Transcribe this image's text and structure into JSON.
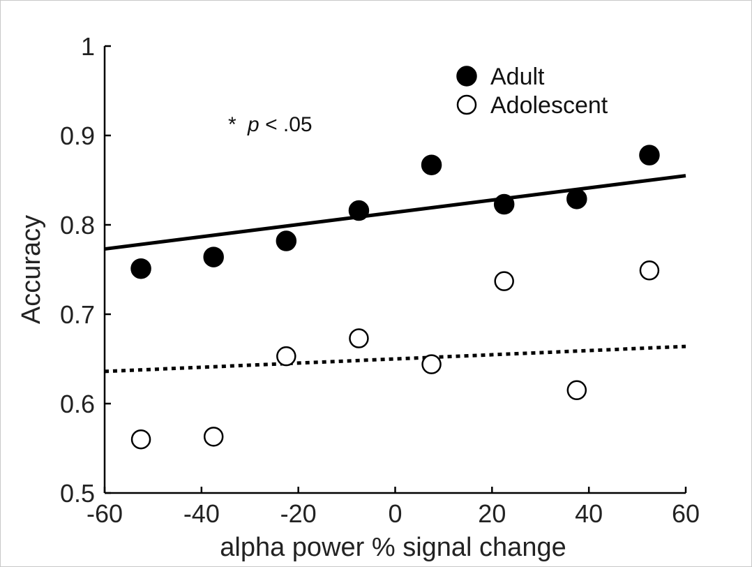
{
  "chart_data": {
    "type": "scatter",
    "xlabel": "alpha power % signal change",
    "ylabel": "Accuracy",
    "xlim": [
      -60,
      60
    ],
    "ylim": [
      0.5,
      1
    ],
    "xticks": [
      -60,
      -40,
      -20,
      0,
      20,
      40,
      60
    ],
    "yticks": [
      0.5,
      0.6,
      0.7,
      0.8,
      0.9,
      1
    ],
    "xtick_labels": [
      "-60",
      "-40",
      "-20",
      "0",
      "20",
      "40",
      "60"
    ],
    "ytick_labels": [
      "0.5",
      "0.6",
      "0.7",
      "0.8",
      "0.9",
      "1"
    ],
    "grid": false,
    "legend_position": "top-right",
    "annotation": {
      "star": "*",
      "p": "p",
      "rest": " < .05"
    },
    "series": [
      {
        "name": "Adult",
        "marker": "filled-circle",
        "color": "#000000",
        "x": [
          -52.5,
          -37.5,
          -22.5,
          -7.5,
          7.5,
          22.5,
          37.5,
          52.5
        ],
        "y": [
          0.751,
          0.764,
          0.782,
          0.816,
          0.867,
          0.823,
          0.829,
          0.878
        ],
        "fit": {
          "style": "solid",
          "x": [
            -60,
            60
          ],
          "y": [
            0.773,
            0.855
          ]
        }
      },
      {
        "name": "Adolescent",
        "marker": "open-circle",
        "color": "#000000",
        "x": [
          -52.5,
          -37.5,
          -22.5,
          -7.5,
          7.5,
          22.5,
          37.5,
          52.5
        ],
        "y": [
          0.56,
          0.563,
          0.653,
          0.673,
          0.644,
          0.737,
          0.615,
          0.749
        ],
        "fit": {
          "style": "dotted",
          "x": [
            -60,
            60
          ],
          "y": [
            0.636,
            0.664
          ]
        }
      }
    ]
  }
}
